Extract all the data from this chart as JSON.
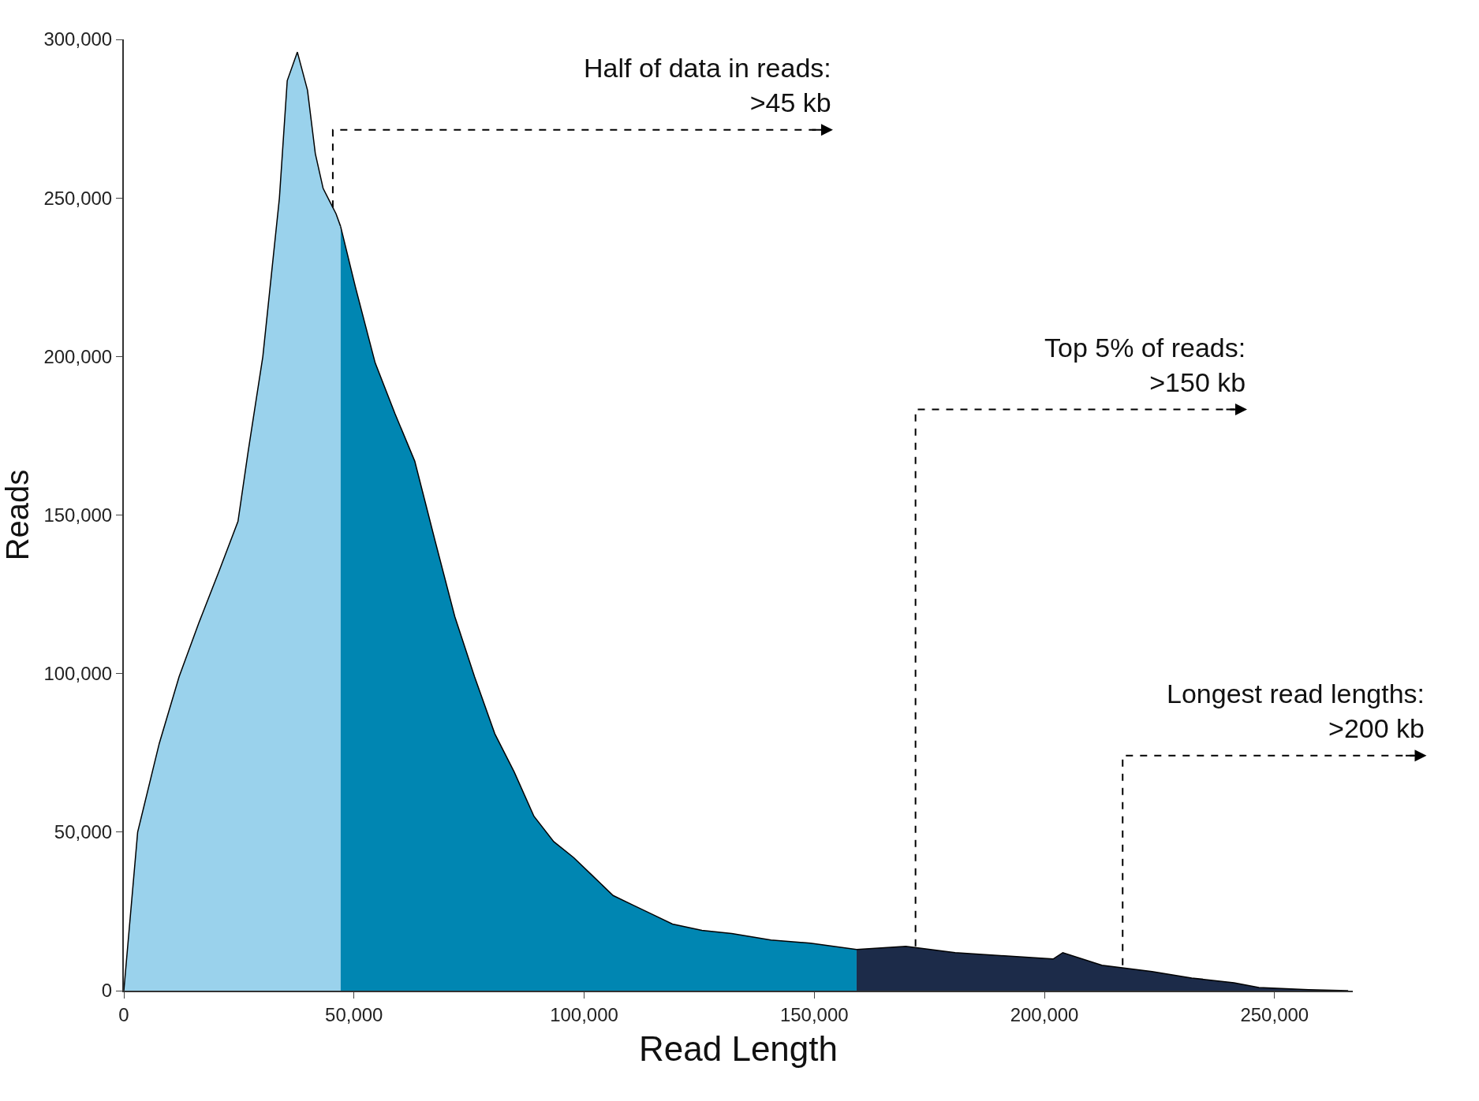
{
  "chart_data": {
    "type": "area",
    "xlabel": "Read Length",
    "ylabel": "Reads",
    "series": [
      {
        "color": "#9ad2ec",
        "x": [
          0,
          3000,
          7700,
          12000,
          16300,
          20600,
          24800,
          27000,
          30200,
          33800,
          35500,
          37700,
          39900,
          41600,
          43300,
          46100,
          47100
        ],
        "values": [
          0,
          50000,
          78000,
          99000,
          116000,
          132000,
          148000,
          170000,
          200000,
          250000,
          287000,
          296000,
          284000,
          264000,
          253000,
          245000,
          241000
        ]
      },
      {
        "color": "#0086b2",
        "x": [
          47100,
          50300,
          54600,
          58900,
          63200,
          67600,
          71900,
          76200,
          80600,
          84800,
          89100,
          93400,
          97700,
          102000,
          106300,
          110600,
          114900,
          119200,
          125600,
          132100,
          140600,
          149200,
          159200
        ],
        "values": [
          241000,
          222000,
          198000,
          182000,
          167000,
          142000,
          118000,
          99000,
          81000,
          69000,
          55000,
          47000,
          42000,
          36000,
          30000,
          27000,
          24000,
          21000,
          19000,
          18000,
          16000,
          15000,
          13000
        ]
      },
      {
        "color": "#1c2b49",
        "x": [
          159200,
          169900,
          180600,
          191300,
          201900,
          204000,
          212500,
          223400,
          232000,
          241200,
          246600,
          257400,
          266000
        ],
        "values": [
          13000,
          14000,
          12000,
          11000,
          10000,
          12000,
          8000,
          6000,
          4000,
          2500,
          1000,
          300,
          0
        ]
      }
    ],
    "xlim": [
      0,
      267000
    ],
    "ylim": [
      0,
      300000
    ],
    "xticks": [
      0,
      {
        "value": 50000,
        "label": "50,000"
      },
      {
        "value": 100000,
        "label": "100,000"
      },
      {
        "value": 150000,
        "label": "150,000"
      },
      {
        "value": 200000,
        "label": "200,000"
      },
      {
        "value": 250000,
        "label": "250,000"
      }
    ],
    "yticks": [
      0,
      {
        "value": 50000,
        "label": "50,000"
      },
      {
        "value": 100000,
        "label": "100,000"
      },
      {
        "value": 150000,
        "label": "150,000"
      },
      {
        "value": 200000,
        "label": "200,000"
      },
      {
        "value": 250000,
        "label": "250,000"
      },
      {
        "value": 300000,
        "label": "300,000"
      }
    ],
    "annotations": [
      {
        "text": "Half of data in reads:\n>45 kb",
        "x": 45400,
        "y": 247000
      },
      {
        "text": "Top 5% of reads:\n>150 kb",
        "x": 172000,
        "y": 14000
      },
      {
        "text": "Longest read lengths:\n>200 kb",
        "x": 217000,
        "y": 8000
      }
    ],
    "line_style": "solid"
  }
}
